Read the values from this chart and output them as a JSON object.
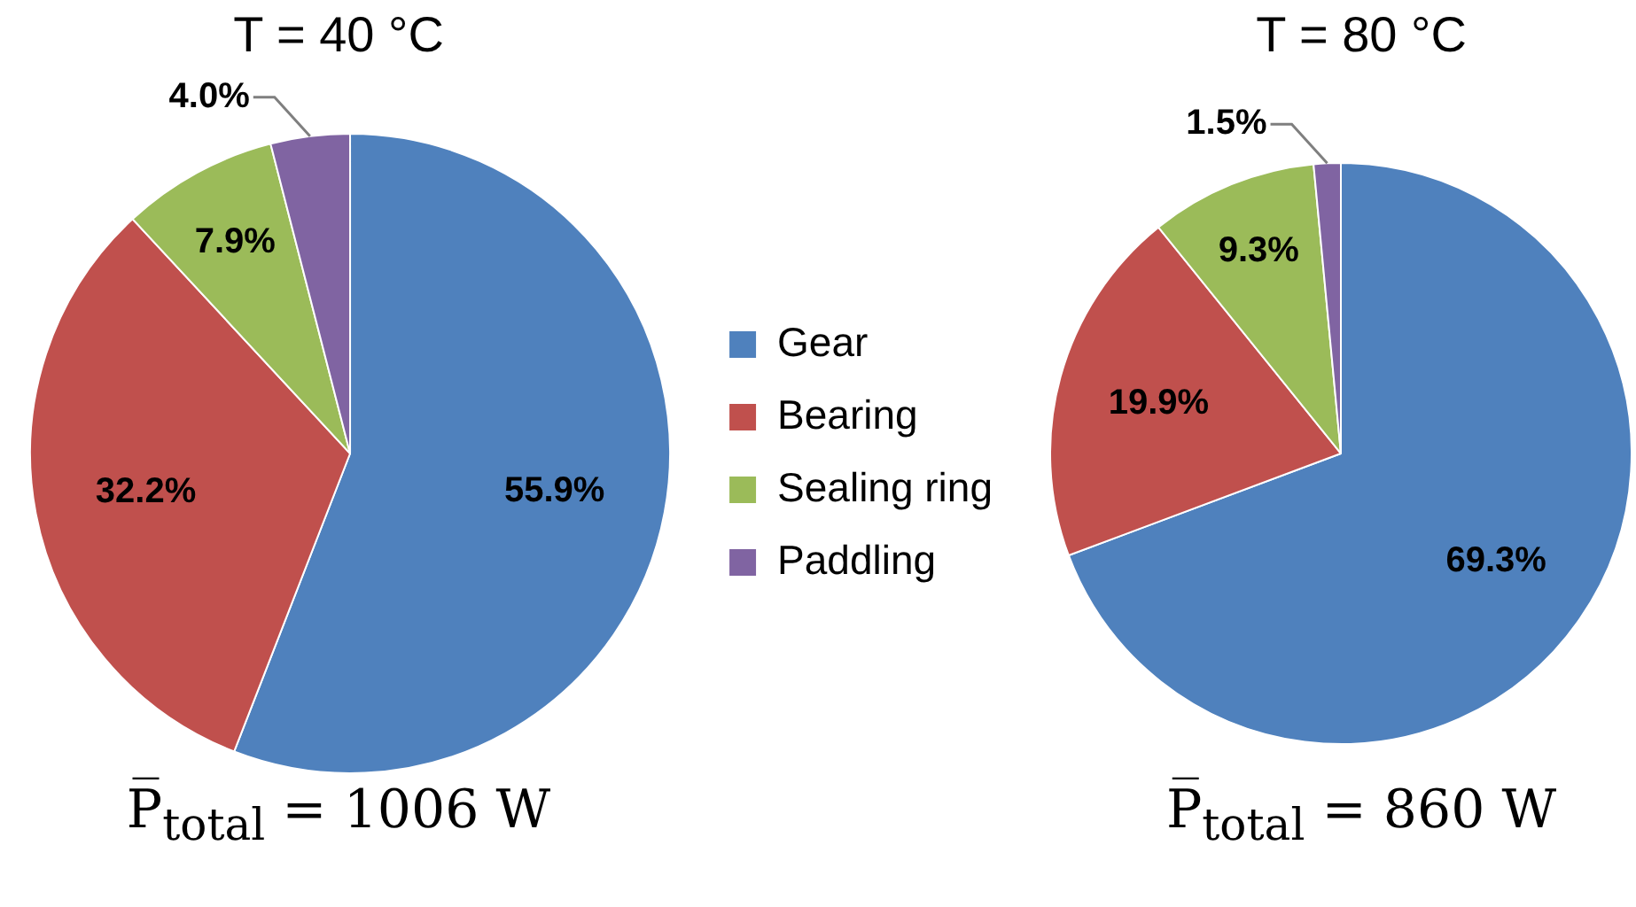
{
  "chart_data": [
    {
      "type": "pie",
      "title": "T = 40 °C",
      "categories": [
        "Gear",
        "Bearing",
        "Sealing ring",
        "Paddling"
      ],
      "values": [
        55.9,
        32.2,
        7.9,
        4.0
      ],
      "value_labels": [
        "55.9%",
        "32.2%",
        "7.9%",
        "4.0%"
      ],
      "colors": [
        "#4f81bd",
        "#c0504d",
        "#9bbb59",
        "#8064a2"
      ],
      "legend": "right",
      "annotations": [
        "P̅$_{total}$ = 1006 W"
      ]
    },
    {
      "type": "pie",
      "title": "T = 80 °C",
      "categories": [
        null,
        null,
        null,
        null
      ],
      "values": [
        69.3,
        19.9,
        9.3,
        1.5
      ],
      "value_labels": [
        "69.3%",
        "19.9%",
        "9.3%",
        "1.5%"
      ],
      "colors": [
        "#4f81bd",
        "#c0504d",
        "#9bbb59",
        "#8064a2"
      ],
      "annotations": [
        "P̅$_{total}$ = 860 W"
      ]
    }
  ]
}
